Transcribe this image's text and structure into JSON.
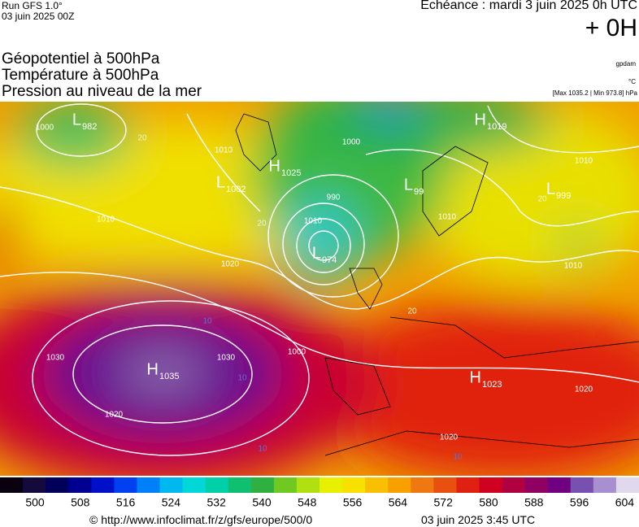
{
  "header": {
    "run": "Run GFS 1.0°",
    "run_date": "03 juin 2025 00Z",
    "forecast": "Echéance : mardi 3 juin 2025 0h UTC",
    "lead": "+ 0H",
    "fields": [
      "Géopotentiel à 500hPa",
      "Température à 500hPa",
      "Pression au niveau de la mer"
    ],
    "unit_geopotential": "gpdam",
    "unit_temperature": "°C",
    "pressure_range": "[Max 1035.2 | Min 973.8] hPa"
  },
  "map": {
    "centers": [
      {
        "letter": "L",
        "value": 982
      },
      {
        "letter": "H",
        "value": 1025
      },
      {
        "letter": "L",
        "value": 1002
      },
      {
        "letter": "L",
        "value": 974
      },
      {
        "letter": "L",
        "value": 99
      },
      {
        "letter": "H",
        "value": 1019
      },
      {
        "letter": "L",
        "value": 999
      },
      {
        "letter": "H",
        "value": 1035
      },
      {
        "letter": "H",
        "value": 1023
      }
    ],
    "isobar_labels": [
      1000,
      1010,
      1010,
      1020,
      1030,
      1030,
      1020,
      1000,
      990,
      1010,
      1000,
      1010,
      1010,
      1010,
      1020,
      1020
    ],
    "temperature_labels": [
      20,
      20,
      20,
      20,
      10,
      10,
      10,
      10
    ]
  },
  "colorbar": {
    "colors": [
      "#0a0010",
      "#140a3c",
      "#00005a",
      "#000090",
      "#0010c8",
      "#0040f0",
      "#0080f8",
      "#00b8f0",
      "#00d8d8",
      "#00d0a8",
      "#10c070",
      "#30b040",
      "#70c820",
      "#b0e010",
      "#e8f000",
      "#f8e000",
      "#f8c000",
      "#f8a000",
      "#f07810",
      "#e85010",
      "#e02010",
      "#d00020",
      "#b00040",
      "#900060",
      "#700080",
      "#7850b0",
      "#a890d0",
      "#e0d8ec"
    ],
    "ticks": [
      500,
      508,
      516,
      524,
      532,
      540,
      548,
      556,
      564,
      572,
      580,
      588,
      596,
      604
    ]
  },
  "footer": {
    "source": "© http://www.infoclimat.fr/z/gfs/europe/500/0",
    "issued": "03 juin 2025  3:45 UTC"
  }
}
